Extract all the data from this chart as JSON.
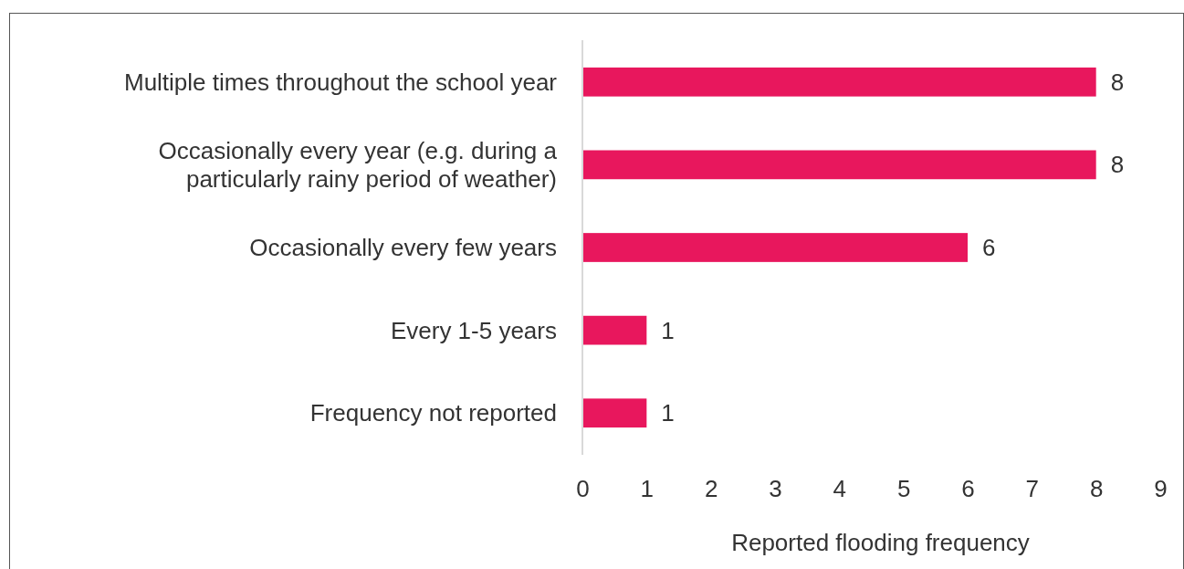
{
  "chart_data": {
    "type": "bar",
    "orientation": "horizontal",
    "xlabel": "Reported flooding frequency",
    "categories": [
      "Multiple times throughout the school year",
      "Occasionally every year (e.g. during a particularly rainy period of weather)",
      "Occasionally every few years",
      "Every 1-5 years",
      "Frequency not reported"
    ],
    "values": [
      8,
      8,
      6,
      1,
      1
    ],
    "color": "#e8175d",
    "xlim": [
      0,
      9
    ],
    "xticks": [
      0,
      1,
      2,
      3,
      4,
      5,
      6,
      7,
      8,
      9
    ],
    "data_labels": true,
    "grid": false
  }
}
